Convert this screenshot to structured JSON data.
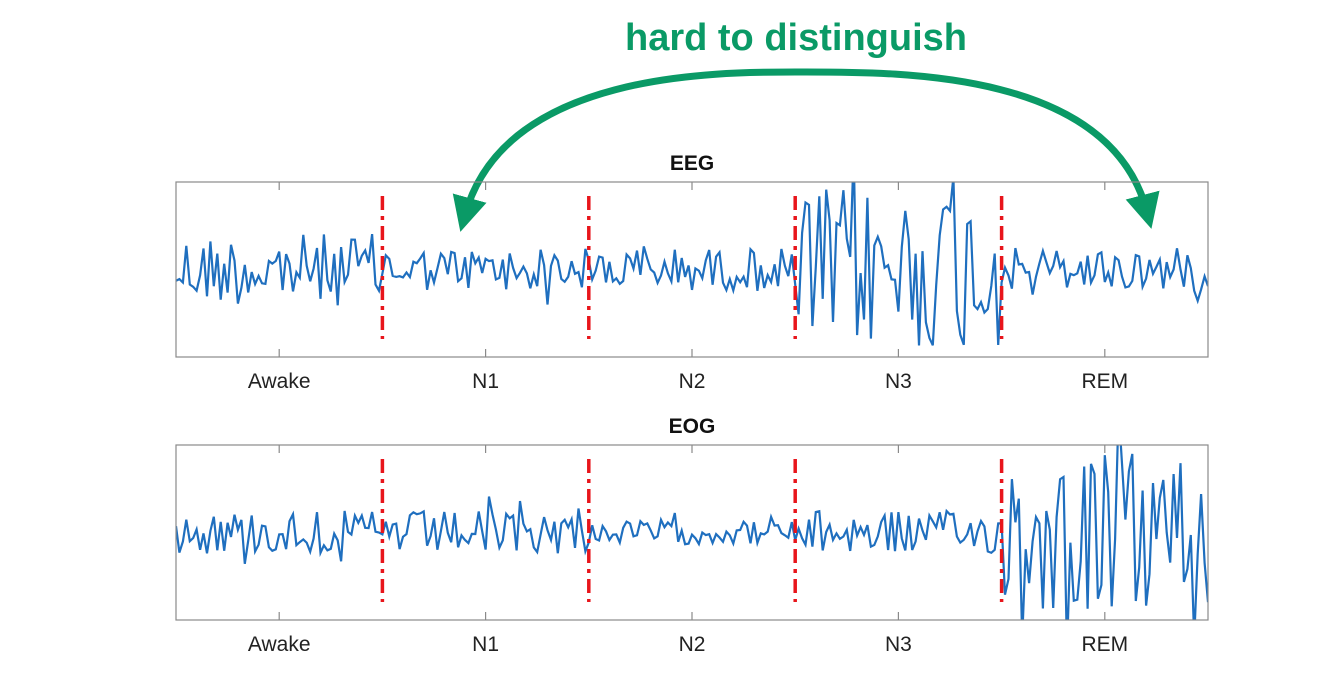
{
  "annotation": {
    "text": "hard to distinguish",
    "color": "#0a9a66"
  },
  "chart_data": [
    {
      "type": "line",
      "title": "EEG",
      "categories": [
        "Awake",
        "N1",
        "N2",
        "N3",
        "REM"
      ],
      "boundaries": [
        "Awake|N1",
        "N1|N2",
        "N2|N3",
        "N3|REM"
      ],
      "series_color": "#1f6fbf",
      "boundary_color": "#e8151b",
      "segments": [
        {
          "stage": "Awake",
          "amplitude": "medium"
        },
        {
          "stage": "N1",
          "amplitude": "low"
        },
        {
          "stage": "N2",
          "amplitude": "low"
        },
        {
          "stage": "N3",
          "amplitude": "high"
        },
        {
          "stage": "REM",
          "amplitude": "low"
        }
      ]
    },
    {
      "type": "line",
      "title": "EOG",
      "categories": [
        "Awake",
        "N1",
        "N2",
        "N3",
        "REM"
      ],
      "boundaries": [
        "Awake|N1",
        "N1|N2",
        "N2|N3",
        "N3|REM"
      ],
      "series_color": "#1f6fbf",
      "boundary_color": "#e8151b",
      "segments": [
        {
          "stage": "Awake",
          "amplitude": "low"
        },
        {
          "stage": "N1",
          "amplitude": "low"
        },
        {
          "stage": "N2",
          "amplitude": "very low"
        },
        {
          "stage": "N3",
          "amplitude": "low"
        },
        {
          "stage": "REM",
          "amplitude": "high"
        }
      ]
    }
  ]
}
